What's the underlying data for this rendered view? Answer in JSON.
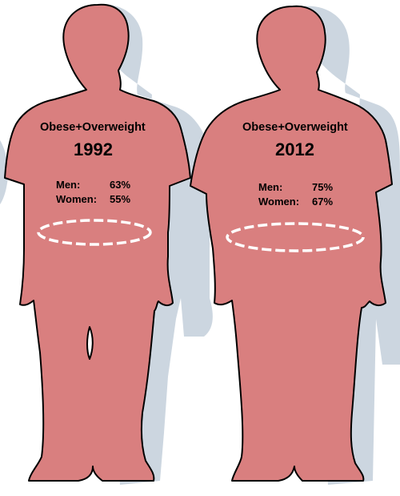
{
  "colors": {
    "body": "#d97f7f",
    "outline": "#000000",
    "shadow": "#ccd6e0",
    "waist_band": "#ffffff"
  },
  "figures": [
    {
      "heading": "Obese+Overweight",
      "year": "1992",
      "stats": [
        {
          "label": "Men:",
          "value": "63%"
        },
        {
          "label": "Women:",
          "value": "55%"
        }
      ]
    },
    {
      "heading": "Obese+Overweight",
      "year": "2012",
      "stats": [
        {
          "label": "Men:",
          "value": "75%"
        },
        {
          "label": "Women:",
          "value": "67%"
        }
      ]
    }
  ]
}
